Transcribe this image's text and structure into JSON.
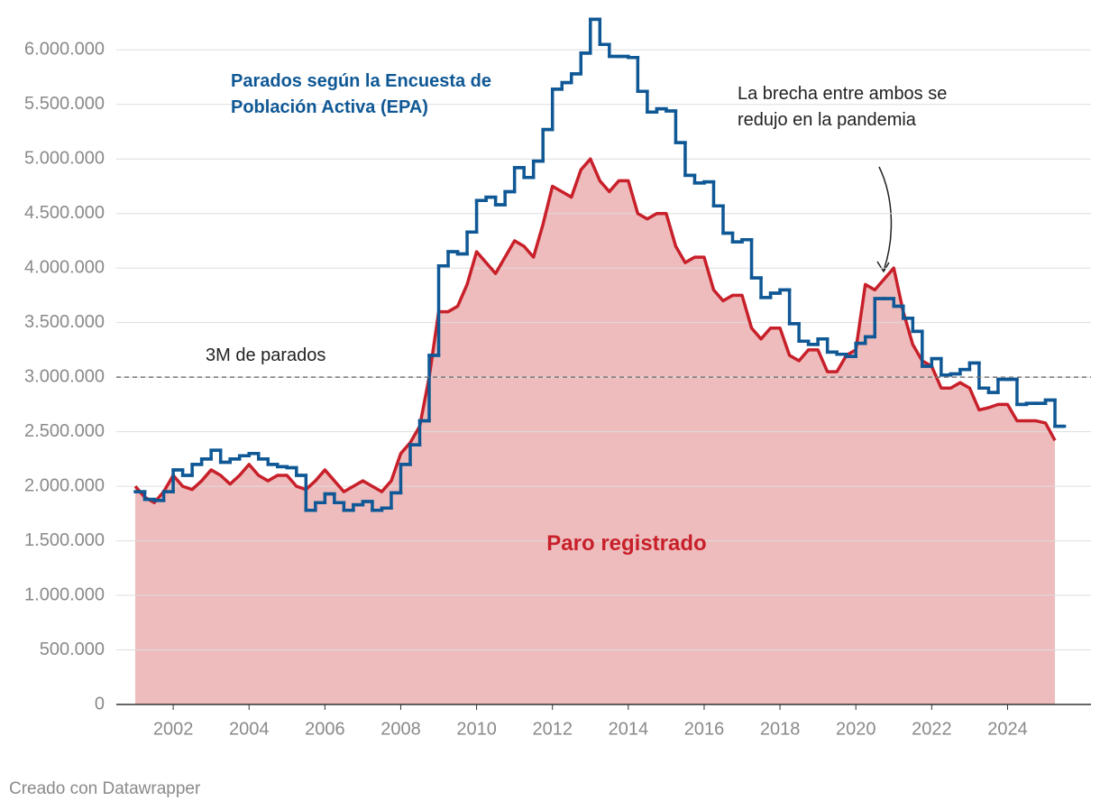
{
  "chart_data": {
    "type": "line",
    "xlim": [
      2000.5,
      2026.2
    ],
    "xticks": [
      2002,
      2004,
      2006,
      2008,
      2010,
      2012,
      2014,
      2016,
      2018,
      2020,
      2022,
      2024
    ],
    "ylim": [
      0,
      6300000
    ],
    "yticks": [
      0,
      {
        "value": 500000,
        "label": "500.000"
      },
      {
        "value": 1000000,
        "label": "1.000.000"
      },
      {
        "value": 1500000,
        "label": "1.500.000"
      },
      {
        "value": 2000000,
        "label": "2.000.000"
      },
      {
        "value": 2500000,
        "label": "2.500.000"
      },
      {
        "value": 3000000,
        "label": "3.000.000"
      },
      {
        "value": 3500000,
        "label": "3.500.000"
      },
      {
        "value": 4000000,
        "label": "4.000.000"
      },
      {
        "value": 4500000,
        "label": "4.500.000"
      },
      {
        "value": 5000000,
        "label": "5.000.000"
      },
      {
        "value": 5500000,
        "label": "5.500.000"
      },
      {
        "value": 6000000,
        "label": "6.000.000"
      }
    ],
    "grid": true,
    "x": [
      2001,
      2001.25,
      2001.5,
      2001.75,
      2002,
      2002.25,
      2002.5,
      2002.75,
      2003,
      2003.25,
      2003.5,
      2003.75,
      2004,
      2004.25,
      2004.5,
      2004.75,
      2005,
      2005.25,
      2005.5,
      2005.75,
      2006,
      2006.25,
      2006.5,
      2006.75,
      2007,
      2007.25,
      2007.5,
      2007.75,
      2008,
      2008.25,
      2008.5,
      2008.75,
      2009,
      2009.25,
      2009.5,
      2009.75,
      2010,
      2010.25,
      2010.5,
      2010.75,
      2011,
      2011.25,
      2011.5,
      2011.75,
      2012,
      2012.25,
      2012.5,
      2012.75,
      2013,
      2013.25,
      2013.5,
      2013.75,
      2014,
      2014.25,
      2014.5,
      2014.75,
      2015,
      2015.25,
      2015.5,
      2015.75,
      2016,
      2016.25,
      2016.5,
      2016.75,
      2017,
      2017.25,
      2017.5,
      2017.75,
      2018,
      2018.25,
      2018.5,
      2018.75,
      2019,
      2019.25,
      2019.5,
      2019.75,
      2020,
      2020.25,
      2020.5,
      2020.75,
      2021,
      2021.25,
      2021.5,
      2021.75,
      2022,
      2022.25,
      2022.5,
      2022.75,
      2023,
      2023.25,
      2023.5,
      2023.75,
      2024,
      2024.25,
      2024.5,
      2024.75,
      2025,
      2025.25
    ],
    "series": [
      {
        "name": "Paro registrado",
        "color": "#c8202a",
        "fill": "#eebcbd",
        "values": [
          2000000,
          1900000,
          1850000,
          1950000,
          2100000,
          2000000,
          1970000,
          2050000,
          2150000,
          2100000,
          2020000,
          2100000,
          2200000,
          2100000,
          2050000,
          2100000,
          2100000,
          2000000,
          1970000,
          2050000,
          2150000,
          2050000,
          1950000,
          2000000,
          2050000,
          2000000,
          1950000,
          2050000,
          2300000,
          2400000,
          2550000,
          3000000,
          3600000,
          3600000,
          3650000,
          3850000,
          4150000,
          4050000,
          3950000,
          4100000,
          4250000,
          4200000,
          4100000,
          4400000,
          4750000,
          4700000,
          4650000,
          4900000,
          5000000,
          4800000,
          4700000,
          4800000,
          4800000,
          4500000,
          4450000,
          4500000,
          4500000,
          4200000,
          4050000,
          4100000,
          4100000,
          3800000,
          3700000,
          3750000,
          3750000,
          3450000,
          3350000,
          3450000,
          3450000,
          3200000,
          3150000,
          3250000,
          3250000,
          3050000,
          3050000,
          3200000,
          3250000,
          3850000,
          3800000,
          3900000,
          4000000,
          3600000,
          3300000,
          3150000,
          3100000,
          2900000,
          2900000,
          2950000,
          2900000,
          2700000,
          2720000,
          2750000,
          2750000,
          2600000,
          2600000,
          2600000,
          2580000,
          2420000
        ]
      },
      {
        "name": "Parados según la Encuesta de Población Activa (EPA)",
        "color": "#0f5895",
        "step": true,
        "values": [
          1950000,
          1880000,
          1870000,
          1950000,
          2150000,
          2100000,
          2200000,
          2250000,
          2330000,
          2220000,
          2250000,
          2280000,
          2300000,
          2250000,
          2200000,
          2180000,
          2170000,
          2100000,
          1780000,
          1850000,
          1930000,
          1850000,
          1780000,
          1830000,
          1860000,
          1780000,
          1800000,
          1940000,
          2200000,
          2380000,
          2600000,
          3200000,
          4020000,
          4150000,
          4130000,
          4330000,
          4620000,
          4650000,
          4580000,
          4700000,
          4920000,
          4830000,
          4980000,
          5270000,
          5640000,
          5700000,
          5780000,
          5970000,
          6280000,
          6050000,
          5940000,
          5940000,
          5930000,
          5620000,
          5430000,
          5460000,
          5440000,
          5150000,
          4850000,
          4780000,
          4790000,
          4570000,
          4320000,
          4240000,
          4260000,
          3910000,
          3730000,
          3770000,
          3800000,
          3490000,
          3330000,
          3300000,
          3350000,
          3230000,
          3210000,
          3190000,
          3310000,
          3370000,
          3720000,
          3720000,
          3650000,
          3540000,
          3420000,
          3100000,
          3170000,
          3020000,
          3030000,
          3070000,
          3130000,
          2900000,
          2860000,
          2980000,
          2980000,
          2750000,
          2760000,
          2760000,
          2790000,
          2550000
        ]
      }
    ],
    "reference_line": {
      "value": 3000000,
      "label": "3M de parados"
    },
    "annotation": "La brecha entre ambos se redujo en la pandemia",
    "credit": "Creado con Datawrapper"
  }
}
